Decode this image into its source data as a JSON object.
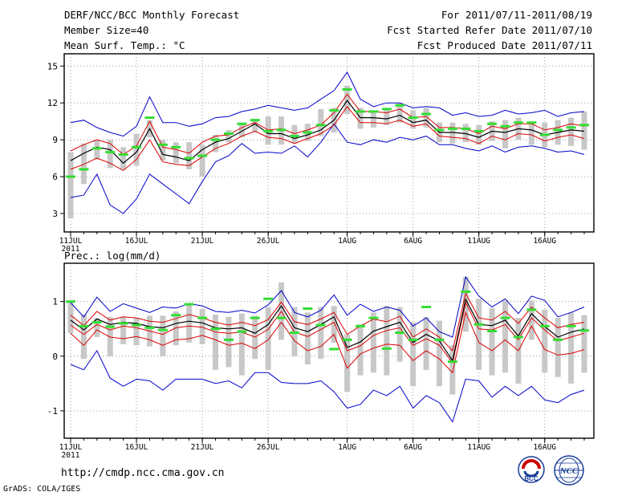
{
  "header": {
    "title": "DERF/NCC/BCC Monthly Forecast",
    "member_size": "Member Size=40",
    "variable": "Mean Surf. Temp.: °C",
    "for_range": "For 2011/07/11-2011/08/19",
    "refer_date": "Fcst Started Refer Date 2011/07/10",
    "produced_date": "Fcst Produced Date 2011/07/11"
  },
  "footer": {
    "url": "http://cmdp.ncc.cma.gov.cn",
    "grads": "GrADS: COLA/IGES",
    "logo_bcc_text": "BCC",
    "logo_ncc_text": "NCC"
  },
  "colors": {
    "box": "#c8c8c8",
    "member": "#33dd33",
    "ensemble_mean": "#000000",
    "spread": "#dd0000",
    "envelope": "#0000cc"
  },
  "chart_data": [
    {
      "type": "line",
      "title": "Mean Surf. Temp.: °C",
      "ylabel": "",
      "ylim": [
        1.5,
        16
      ],
      "yticks": [
        3,
        6,
        9,
        12,
        15
      ],
      "xlim": [
        0,
        40
      ],
      "xticks": [
        {
          "day": 0,
          "label": "11JUL"
        },
        {
          "day": 5,
          "label": "16JUL"
        },
        {
          "day": 10,
          "label": "21JUL"
        },
        {
          "day": 15,
          "label": "26JUL"
        },
        {
          "day": 21,
          "label": "1AUG"
        },
        {
          "day": 26,
          "label": "6AUG"
        },
        {
          "day": 31,
          "label": "11AUG"
        },
        {
          "day": 36,
          "label": "16AUG"
        }
      ],
      "xsublabel": "2011",
      "grid": true,
      "x": [
        0,
        1,
        2,
        3,
        4,
        5,
        6,
        7,
        8,
        9,
        10,
        11,
        12,
        13,
        14,
        15,
        16,
        17,
        18,
        19,
        20,
        21,
        22,
        23,
        24,
        25,
        26,
        27,
        28,
        29,
        30,
        31,
        32,
        33,
        34,
        35,
        36,
        37,
        38,
        39
      ],
      "series": [
        {
          "name": "max",
          "values": [
            10.4,
            10.6,
            10.0,
            9.6,
            9.3,
            10.1,
            12.5,
            10.4,
            10.4,
            10.1,
            10.3,
            10.8,
            10.9,
            11.3,
            11.5,
            11.8,
            11.6,
            11.4,
            11.6,
            12.3,
            13.0,
            14.5,
            12.3,
            11.7,
            12.0,
            12.0,
            11.6,
            11.7,
            11.6,
            11.0,
            11.2,
            10.9,
            11.0,
            11.4,
            11.1,
            11.2,
            11.4,
            10.9,
            11.2,
            11.3
          ]
        },
        {
          "name": "upper",
          "values": [
            8.1,
            8.6,
            9.0,
            8.7,
            7.8,
            8.5,
            10.5,
            8.4,
            8.2,
            7.9,
            8.8,
            9.3,
            9.4,
            10.0,
            10.4,
            9.8,
            9.9,
            9.5,
            9.8,
            10.2,
            11.2,
            12.7,
            11.3,
            11.3,
            11.2,
            11.5,
            10.8,
            10.9,
            10.0,
            10.0,
            9.9,
            9.5,
            10.1,
            9.9,
            10.3,
            10.3,
            9.8,
            10.0,
            10.3,
            10.1
          ]
        },
        {
          "name": "mean",
          "values": [
            7.3,
            7.9,
            8.4,
            8.2,
            7.1,
            8.0,
            9.9,
            7.8,
            7.6,
            7.3,
            8.2,
            8.8,
            9.1,
            9.7,
            10.3,
            9.5,
            9.5,
            9.1,
            9.4,
            9.8,
            10.6,
            12.2,
            10.8,
            10.8,
            10.7,
            11.0,
            10.4,
            10.6,
            9.6,
            9.6,
            9.5,
            9.2,
            9.7,
            9.6,
            9.9,
            9.8,
            9.4,
            9.6,
            9.8,
            9.7
          ]
        },
        {
          "name": "lower",
          "values": [
            6.6,
            7.0,
            7.5,
            7.1,
            6.5,
            7.4,
            9.0,
            7.2,
            7.0,
            6.9,
            7.6,
            8.3,
            8.7,
            9.3,
            9.7,
            9.2,
            9.1,
            8.7,
            9.1,
            9.5,
            10.2,
            11.7,
            10.4,
            10.4,
            10.3,
            10.6,
            10.1,
            10.3,
            9.3,
            9.2,
            9.1,
            8.7,
            9.3,
            9.0,
            9.5,
            9.4,
            8.9,
            9.2,
            9.4,
            9.1
          ]
        },
        {
          "name": "min",
          "values": [
            4.3,
            4.5,
            6.2,
            3.7,
            3.0,
            4.2,
            6.2,
            5.4,
            4.6,
            3.8,
            5.6,
            7.2,
            7.7,
            8.7,
            7.9,
            8.0,
            7.9,
            8.5,
            7.6,
            8.8,
            10.3,
            8.8,
            8.6,
            9.0,
            8.8,
            9.2,
            9.0,
            9.3,
            8.6,
            8.6,
            8.3,
            8.1,
            8.5,
            8.0,
            8.4,
            8.5,
            8.3,
            8.0,
            8.1,
            7.8
          ]
        },
        {
          "name": "box_top",
          "values": [
            8.0,
            8.7,
            9.0,
            9.0,
            8.4,
            9.5,
            10.6,
            9.0,
            8.8,
            8.8,
            8.6,
            9.4,
            9.8,
            10.4,
            10.7,
            10.9,
            10.9,
            10.2,
            10.3,
            11.5,
            11.6,
            13.4,
            11.6,
            11.2,
            11.4,
            12.0,
            11.4,
            11.6,
            10.4,
            10.4,
            10.3,
            10.2,
            10.5,
            10.6,
            10.8,
            10.4,
            10.4,
            10.6,
            10.8,
            11.3
          ]
        },
        {
          "name": "box_bottom",
          "values": [
            2.6,
            5.4,
            7.4,
            6.7,
            6.6,
            6.9,
            9.2,
            7.3,
            7.1,
            6.6,
            6.0,
            8.0,
            8.8,
            9.2,
            9.6,
            8.6,
            8.6,
            8.7,
            8.9,
            9.3,
            9.6,
            11.1,
            9.9,
            10.0,
            10.2,
            10.4,
            9.9,
            10.0,
            8.8,
            8.7,
            8.8,
            8.6,
            8.9,
            8.3,
            9.0,
            8.6,
            8.4,
            8.6,
            8.5,
            8.2
          ]
        },
        {
          "name": "member_marker",
          "values": [
            6.0,
            6.6,
            8.3,
            8.0,
            7.8,
            8.4,
            10.8,
            8.6,
            8.4,
            7.5,
            7.7,
            9.0,
            9.5,
            10.3,
            10.6,
            9.7,
            9.8,
            9.3,
            9.6,
            10.2,
            11.4,
            13.1,
            11.3,
            11.3,
            11.5,
            11.8,
            10.8,
            11.1,
            9.8,
            9.9,
            9.9,
            9.7,
            10.3,
            10.1,
            10.4,
            10.4,
            9.4,
            9.8,
            10.0,
            10.2
          ]
        }
      ]
    },
    {
      "type": "line",
      "title": "Prec.: log(mm/d)",
      "ylabel": "",
      "ylim": [
        -1.5,
        1.7
      ],
      "yticks": [
        -1,
        0,
        1
      ],
      "xlim": [
        0,
        40
      ],
      "xticks": [
        {
          "day": 0,
          "label": "11JUL"
        },
        {
          "day": 5,
          "label": "16JUL"
        },
        {
          "day": 10,
          "label": "21JUL"
        },
        {
          "day": 15,
          "label": "26JUL"
        },
        {
          "day": 21,
          "label": "1AUG"
        },
        {
          "day": 26,
          "label": "6AUG"
        },
        {
          "day": 31,
          "label": "11AUG"
        },
        {
          "day": 36,
          "label": "16AUG"
        }
      ],
      "xsublabel": "2011",
      "grid": true,
      "x": [
        0,
        1,
        2,
        3,
        4,
        5,
        6,
        7,
        8,
        9,
        10,
        11,
        12,
        13,
        14,
        15,
        16,
        17,
        18,
        19,
        20,
        21,
        22,
        23,
        24,
        25,
        26,
        27,
        28,
        29,
        30,
        31,
        32,
        33,
        34,
        35,
        36,
        37,
        38,
        39
      ],
      "series": [
        {
          "name": "max",
          "values": [
            0.98,
            0.72,
            1.08,
            0.82,
            0.96,
            0.88,
            0.8,
            0.9,
            0.88,
            0.96,
            0.92,
            0.82,
            0.8,
            0.84,
            0.79,
            0.94,
            1.2,
            0.8,
            0.72,
            0.84,
            1.12,
            0.75,
            0.95,
            0.82,
            0.9,
            0.84,
            0.55,
            0.7,
            0.45,
            0.35,
            1.45,
            1.1,
            0.9,
            1.05,
            0.78,
            1.1,
            1.02,
            0.72,
            0.8,
            0.9
          ]
        },
        {
          "name": "upper",
          "values": [
            0.75,
            0.56,
            0.82,
            0.66,
            0.72,
            0.7,
            0.64,
            0.62,
            0.69,
            0.76,
            0.7,
            0.62,
            0.57,
            0.62,
            0.56,
            0.67,
            0.99,
            0.63,
            0.58,
            0.68,
            0.8,
            0.4,
            0.55,
            0.68,
            0.63,
            0.73,
            0.35,
            0.5,
            0.35,
            0.1,
            1.15,
            0.7,
            0.66,
            0.82,
            0.6,
            0.9,
            0.7,
            0.52,
            0.58,
            0.62
          ]
        },
        {
          "name": "mean",
          "values": [
            0.66,
            0.48,
            0.68,
            0.58,
            0.62,
            0.6,
            0.54,
            0.52,
            0.6,
            0.64,
            0.61,
            0.52,
            0.5,
            0.52,
            0.42,
            0.58,
            0.92,
            0.52,
            0.45,
            0.58,
            0.72,
            0.16,
            0.26,
            0.46,
            0.54,
            0.62,
            0.25,
            0.4,
            0.28,
            -0.08,
            1.04,
            0.58,
            0.56,
            0.66,
            0.37,
            0.78,
            0.54,
            0.35,
            0.44,
            0.5
          ]
        },
        {
          "name": "lower",
          "values": [
            0.57,
            0.4,
            0.58,
            0.48,
            0.55,
            0.52,
            0.46,
            0.4,
            0.52,
            0.55,
            0.53,
            0.44,
            0.42,
            0.44,
            0.35,
            0.49,
            0.82,
            0.44,
            0.36,
            0.49,
            0.62,
            0.1,
            0.19,
            0.38,
            0.47,
            0.52,
            0.2,
            0.32,
            0.2,
            -0.12,
            0.98,
            0.5,
            0.48,
            0.58,
            0.3,
            0.7,
            0.48,
            0.28,
            0.35,
            0.42
          ]
        },
        {
          "name": "lower_band",
          "values": [
            0.42,
            0.2,
            0.48,
            0.35,
            0.32,
            0.36,
            0.3,
            0.2,
            0.3,
            0.32,
            0.38,
            0.3,
            0.2,
            0.24,
            0.14,
            0.3,
            0.62,
            0.28,
            0.1,
            0.18,
            0.4,
            -0.22,
            0.04,
            0.15,
            0.22,
            0.2,
            -0.08,
            0.1,
            -0.05,
            -0.3,
            0.8,
            0.25,
            0.1,
            0.3,
            0.1,
            0.55,
            0.12,
            0.02,
            0.05,
            0.12
          ]
        },
        {
          "name": "min",
          "values": [
            -0.15,
            -0.25,
            0.1,
            -0.4,
            -0.55,
            -0.42,
            -0.45,
            -0.62,
            -0.42,
            -0.42,
            -0.42,
            -0.5,
            -0.45,
            -0.58,
            -0.3,
            -0.3,
            -0.48,
            -0.5,
            -0.5,
            -0.45,
            -0.65,
            -0.95,
            -0.88,
            -0.62,
            -0.72,
            -0.55,
            -0.95,
            -0.72,
            -0.85,
            -1.2,
            -0.42,
            -0.45,
            -0.75,
            -0.55,
            -0.72,
            -0.55,
            -0.8,
            -0.85,
            -0.7,
            -0.62
          ]
        },
        {
          "name": "box_top",
          "values": [
            1.0,
            0.76,
            0.7,
            0.72,
            0.72,
            0.7,
            0.74,
            0.74,
            0.82,
            0.96,
            0.86,
            0.76,
            0.72,
            0.78,
            0.74,
            0.9,
            1.35,
            0.9,
            0.8,
            0.9,
            0.92,
            0.4,
            0.58,
            0.8,
            0.92,
            0.9,
            0.62,
            0.72,
            0.65,
            0.2,
            1.45,
            1.05,
            0.88,
            1.02,
            0.7,
            1.02,
            0.85,
            0.7,
            0.8,
            0.75
          ]
        },
        {
          "name": "box_bottom",
          "values": [
            0.42,
            -0.05,
            0.35,
            0.0,
            0.22,
            0.2,
            0.18,
            0.0,
            0.2,
            0.25,
            0.22,
            -0.25,
            -0.2,
            -0.35,
            -0.05,
            -0.25,
            0.3,
            0.0,
            -0.15,
            -0.05,
            0.25,
            -0.65,
            -0.35,
            -0.3,
            -0.35,
            -0.1,
            -0.55,
            -0.25,
            -0.55,
            -0.7,
            0.45,
            -0.25,
            -0.35,
            -0.3,
            -0.5,
            0.3,
            -0.3,
            -0.38,
            -0.5,
            -0.3
          ]
        },
        {
          "name": "member_marker",
          "values": [
            1.0,
            0.55,
            0.62,
            0.54,
            0.6,
            0.57,
            0.52,
            0.48,
            0.75,
            0.95,
            0.7,
            0.5,
            0.3,
            0.45,
            0.7,
            1.05,
            0.7,
            0.43,
            0.87,
            0.57,
            0.13,
            0.3,
            0.55,
            0.7,
            0.14,
            0.43,
            0.3,
            0.9,
            0.3,
            -0.1,
            1.18,
            0.58,
            0.46,
            0.7,
            0.35,
            0.85,
            0.55,
            0.3,
            0.55,
            0.47
          ]
        }
      ]
    }
  ]
}
